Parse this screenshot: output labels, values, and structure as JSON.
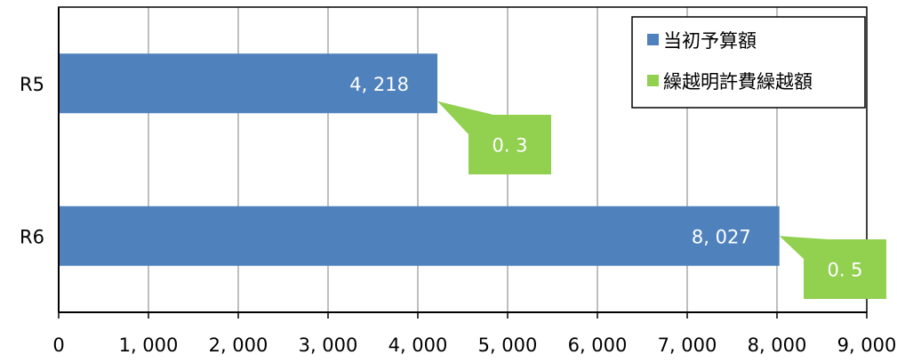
{
  "chart_data": {
    "type": "bar",
    "orientation": "horizontal",
    "categories": [
      "R5",
      "R6"
    ],
    "series": [
      {
        "name": "当初予算額",
        "values": [
          4218,
          8027
        ],
        "labels": [
          "4, 218",
          "8, 027"
        ],
        "color": "#4f81bd"
      },
      {
        "name": "繰越明許費繰越額",
        "values": [
          0.3,
          0.5
        ],
        "labels": [
          "0. 3",
          "0. 5"
        ],
        "color": "#92d050"
      }
    ],
    "xlim": [
      0,
      9000
    ],
    "xticks": [
      0,
      1000,
      2000,
      3000,
      4000,
      5000,
      6000,
      7000,
      8000,
      9000
    ],
    "xtick_labels": [
      "0",
      "1, 000",
      "2, 000",
      "3, 000",
      "4, 000",
      "5, 000",
      "6, 000",
      "7, 000",
      "8, 000",
      "9, 000"
    ],
    "title": "",
    "xlabel": "",
    "ylabel": "",
    "grid": "vertical",
    "legend": "top-right"
  }
}
